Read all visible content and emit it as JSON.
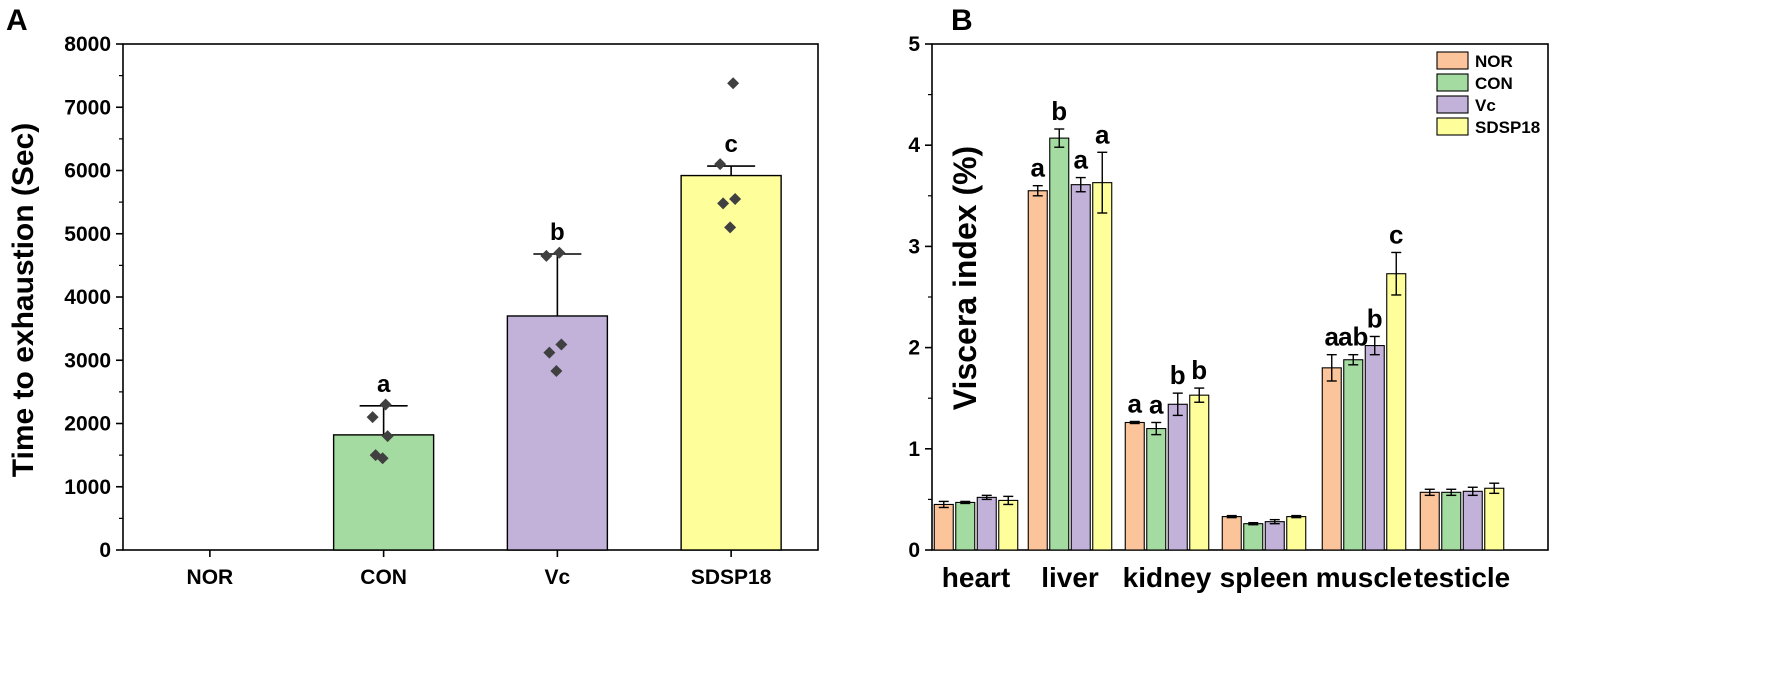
{
  "chart_data": [
    {
      "panel": "A",
      "type": "bar",
      "categories": [
        "NOR",
        "CON",
        "Vc",
        "SDSP18"
      ],
      "values": [
        0,
        1820,
        3700,
        5920
      ],
      "errors": [
        0,
        460,
        980,
        150
      ],
      "points": [
        [],
        [
          2300,
          2100,
          1800,
          1500,
          1450
        ],
        [
          4700,
          4650,
          3250,
          3120,
          2830
        ],
        [
          7380,
          6100,
          5550,
          5480,
          5100
        ]
      ],
      "significance": [
        "",
        "a",
        "b",
        "c"
      ],
      "colors": [
        "#ffffff",
        "#a4dba0",
        "#c2b2da",
        "#fefe9b"
      ],
      "ylabel": "Time to exhaustion (Sec)",
      "ylim": [
        0,
        8000
      ],
      "yticks": [
        0,
        1000,
        2000,
        3000,
        4000,
        5000,
        6000,
        7000,
        8000
      ]
    },
    {
      "panel": "B",
      "type": "bar",
      "categories": [
        "heart",
        "liver",
        "kidney",
        "spleen",
        "muscle",
        "testicle"
      ],
      "series": [
        {
          "name": "NOR",
          "color": "#fcc49a",
          "values": [
            0.45,
            3.55,
            1.26,
            0.33,
            1.8,
            0.57
          ],
          "errors": [
            0.03,
            0.05,
            0.01,
            0.01,
            0.13,
            0.03
          ]
        },
        {
          "name": "CON",
          "color": "#a4dba0",
          "values": [
            0.47,
            4.07,
            1.2,
            0.26,
            1.88,
            0.57
          ],
          "errors": [
            0.01,
            0.09,
            0.06,
            0.01,
            0.05,
            0.03
          ]
        },
        {
          "name": "Vc",
          "color": "#c2b2da",
          "values": [
            0.52,
            3.61,
            1.44,
            0.28,
            2.02,
            0.58
          ],
          "errors": [
            0.02,
            0.07,
            0.11,
            0.02,
            0.09,
            0.04
          ]
        },
        {
          "name": "SDSP18",
          "color": "#fefe9b",
          "values": [
            0.49,
            3.63,
            1.53,
            0.33,
            2.73,
            0.61
          ],
          "errors": [
            0.04,
            0.3,
            0.07,
            0.01,
            0.21,
            0.05
          ]
        }
      ],
      "significance": {
        "liver": [
          "a",
          "b",
          "a",
          "a"
        ],
        "kidney": [
          "a",
          "a",
          "b",
          "b"
        ],
        "muscle": [
          "a",
          "ab",
          "b",
          "c"
        ]
      },
      "ylabel": "Viscera index (%)",
      "ylim": [
        0,
        5
      ],
      "yticks": [
        0,
        1,
        2,
        3,
        4,
        5
      ],
      "legend": "top-right"
    }
  ],
  "labels": {
    "panel_a": "A",
    "panel_b": "B"
  }
}
